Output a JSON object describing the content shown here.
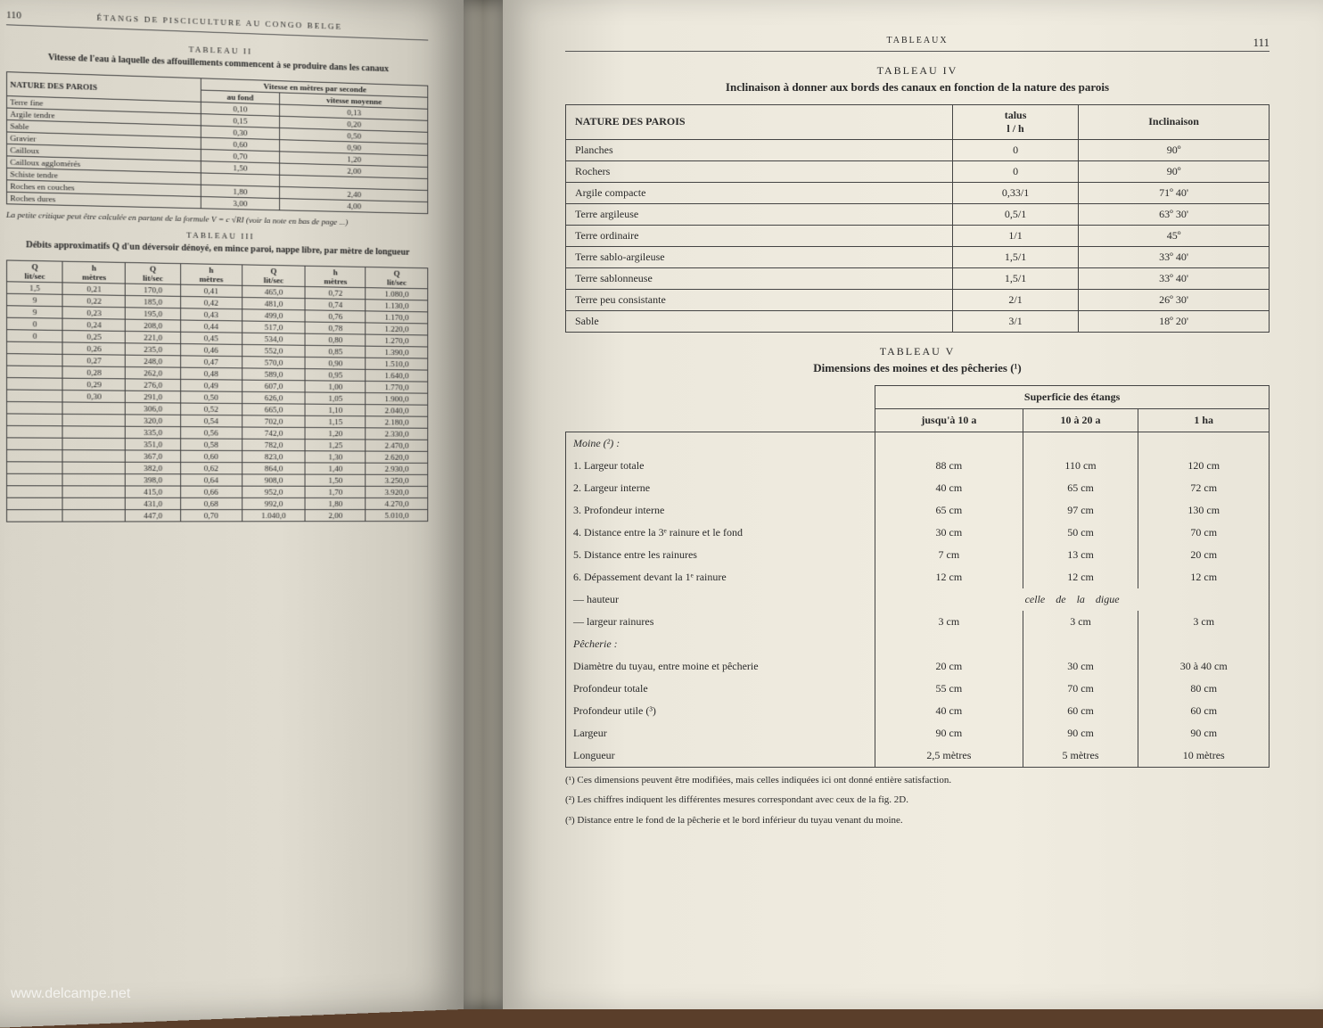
{
  "watermark": "www.delcampe.net",
  "left": {
    "page_num": "110",
    "running_head": "ÉTANGS DE PISCICULTURE AU CONGO BELGE",
    "tab2": {
      "label": "TABLEAU II",
      "title": "Vitesse de l'eau à laquelle des affouillements commencent à se produire dans les canaux",
      "head_nature": "NATURE DES PAROIS",
      "head_group": "Vitesse en mètres par seconde",
      "head_fond": "au fond",
      "head_moy": "vitesse moyenne",
      "rows": [
        {
          "n": "Terre fine",
          "f": "0,10",
          "m": "0,13"
        },
        {
          "n": "Argile tendre",
          "f": "0,15",
          "m": "0,20"
        },
        {
          "n": "Sable",
          "f": "0,30",
          "m": "0,50"
        },
        {
          "n": "Gravier",
          "f": "0,60",
          "m": "0,90"
        },
        {
          "n": "Cailloux",
          "f": "0,70",
          "m": "1,20"
        },
        {
          "n": "Cailloux agglomérés",
          "f": "1,50",
          "m": "2,00"
        },
        {
          "n": "Schiste tendre",
          "f": "",
          "m": ""
        },
        {
          "n": "Roches en couches",
          "f": "1,80",
          "m": "2,40"
        },
        {
          "n": "Roches dures",
          "f": "3,00",
          "m": "4,00"
        }
      ],
      "formula": "La petite critique peut être calculée en partant de la formule V = c √RI (voir la note en bas de page ...)"
    },
    "tab3": {
      "label": "TABLEAU III",
      "title": "Débits approximatifs Q d'un déversoir dénoyé, en mince paroi, nappe libre, par mètre de longueur",
      "cols": [
        "Q lit/sec",
        "h mètres",
        "Q lit/sec",
        "h mètres",
        "Q lit/sec",
        "h mètres",
        "Q lit/sec"
      ],
      "rows": [
        [
          "1,5",
          "0,21",
          "170,0",
          "0,41",
          "465,0",
          "0,72",
          "1.080,0"
        ],
        [
          "9",
          "0,22",
          "185,0",
          "0,42",
          "481,0",
          "0,74",
          "1.130,0"
        ],
        [
          "9",
          "0,23",
          "195,0",
          "0,43",
          "499,0",
          "0,76",
          "1.170,0"
        ],
        [
          "0",
          "0,24",
          "208,0",
          "0,44",
          "517,0",
          "0,78",
          "1.220,0"
        ],
        [
          "0",
          "0,25",
          "221,0",
          "0,45",
          "534,0",
          "0,80",
          "1.270,0"
        ],
        [
          "",
          "0,26",
          "235,0",
          "0,46",
          "552,0",
          "0,85",
          "1.390,0"
        ],
        [
          "",
          "0,27",
          "248,0",
          "0,47",
          "570,0",
          "0,90",
          "1.510,0"
        ],
        [
          "",
          "0,28",
          "262,0",
          "0,48",
          "589,0",
          "0,95",
          "1.640,0"
        ],
        [
          "",
          "0,29",
          "276,0",
          "0,49",
          "607,0",
          "1,00",
          "1.770,0"
        ],
        [
          "",
          "0,30",
          "291,0",
          "0,50",
          "626,0",
          "1,05",
          "1.900,0"
        ],
        [
          "",
          "",
          "306,0",
          "0,52",
          "665,0",
          "1,10",
          "2.040,0"
        ],
        [
          "",
          "",
          "320,0",
          "0,54",
          "702,0",
          "1,15",
          "2.180,0"
        ],
        [
          "",
          "",
          "335,0",
          "0,56",
          "742,0",
          "1,20",
          "2.330,0"
        ],
        [
          "",
          "",
          "351,0",
          "0,58",
          "782,0",
          "1,25",
          "2.470,0"
        ],
        [
          "",
          "",
          "367,0",
          "0,60",
          "823,0",
          "1,30",
          "2.620,0"
        ],
        [
          "",
          "",
          "382,0",
          "0,62",
          "864,0",
          "1,40",
          "2.930,0"
        ],
        [
          "",
          "",
          "398,0",
          "0,64",
          "908,0",
          "1,50",
          "3.250,0"
        ],
        [
          "",
          "",
          "415,0",
          "0,66",
          "952,0",
          "1,70",
          "3.920,0"
        ],
        [
          "",
          "",
          "431,0",
          "0,68",
          "992,0",
          "1,80",
          "4.270,0"
        ],
        [
          "",
          "",
          "447,0",
          "0,70",
          "1.040,0",
          "2,00",
          "5.010,0"
        ]
      ]
    }
  },
  "right": {
    "page_num": "111",
    "running_head": "TABLEAUX",
    "tab4": {
      "label": "TABLEAU IV",
      "title": "Inclinaison à donner aux bords des canaux en fonction de la nature des parois",
      "head_nature": "NATURE DES PAROIS",
      "head_talus_top": "talus",
      "head_talus_frac": "l / h",
      "head_incl": "Inclinaison",
      "rows": [
        {
          "n": "Planches",
          "t": "0",
          "i": "90º"
        },
        {
          "n": "Rochers",
          "t": "0",
          "i": "90º"
        },
        {
          "n": "Argile compacte",
          "t": "0,33/1",
          "i": "71º 40'"
        },
        {
          "n": "Terre argileuse",
          "t": "0,5/1",
          "i": "63º 30'"
        },
        {
          "n": "Terre ordinaire",
          "t": "1/1",
          "i": "45º"
        },
        {
          "n": "Terre sablo-argileuse",
          "t": "1,5/1",
          "i": "33º 40'"
        },
        {
          "n": "Terre sablonneuse",
          "t": "1,5/1",
          "i": "33º 40'"
        },
        {
          "n": "Terre peu consistante",
          "t": "2/1",
          "i": "26º 30'"
        },
        {
          "n": "Sable",
          "t": "3/1",
          "i": "18º 20'"
        }
      ]
    },
    "tab5": {
      "label": "TABLEAU V",
      "title": "Dimensions des moines et des pêcheries (¹)",
      "head_group": "Superficie des étangs",
      "head_c1": "jusqu'à 10 a",
      "head_c2": "10 à 20 a",
      "head_c3": "1 ha",
      "section_moine": "Moine (²) :",
      "rows_moine": [
        {
          "n": "1. Largeur totale",
          "a": "88 cm",
          "b": "110 cm",
          "c": "120 cm"
        },
        {
          "n": "2. Largeur interne",
          "a": "40 cm",
          "b": "65 cm",
          "c": "72 cm"
        },
        {
          "n": "3. Profondeur interne",
          "a": "65 cm",
          "b": "97 cm",
          "c": "130 cm"
        },
        {
          "n": "4. Distance entre la 3ᵉ rainure et le fond",
          "a": "30 cm",
          "b": "50 cm",
          "c": "70 cm"
        },
        {
          "n": "5. Distance entre les rainures",
          "a": "7 cm",
          "b": "13 cm",
          "c": "20 cm"
        },
        {
          "n": "6. Dépassement devant la 1ᵉ rainure",
          "a": "12 cm",
          "b": "12 cm",
          "c": "12 cm"
        }
      ],
      "row_hauteur": {
        "n": "— hauteur",
        "span": "celle    de    la    digue"
      },
      "row_rainures": {
        "n": "— largeur rainures",
        "a": "3 cm",
        "b": "3 cm",
        "c": "3 cm"
      },
      "section_pecherie": "Pêcherie :",
      "rows_pecherie": [
        {
          "n": "Diamètre du tuyau, entre moine et pêcherie",
          "a": "20 cm",
          "b": "30 cm",
          "c": "30 à 40 cm"
        },
        {
          "n": "Profondeur totale",
          "a": "55 cm",
          "b": "70 cm",
          "c": "80 cm"
        },
        {
          "n": "Profondeur utile (³)",
          "a": "40 cm",
          "b": "60 cm",
          "c": "60 cm"
        },
        {
          "n": "Largeur",
          "a": "90 cm",
          "b": "90 cm",
          "c": "90 cm"
        },
        {
          "n": "Longueur",
          "a": "2,5 mètres",
          "b": "5 mètres",
          "c": "10 mètres"
        }
      ]
    },
    "footnotes": [
      "(¹) Ces dimensions peuvent être modifiées, mais celles indiquées ici ont donné entière satisfaction.",
      "(²) Les chiffres indiquent les différentes mesures correspondant avec ceux de la fig. 2D.",
      "(³) Distance entre le fond de la pêcherie et le bord inférieur du tuyau venant du moine."
    ]
  }
}
